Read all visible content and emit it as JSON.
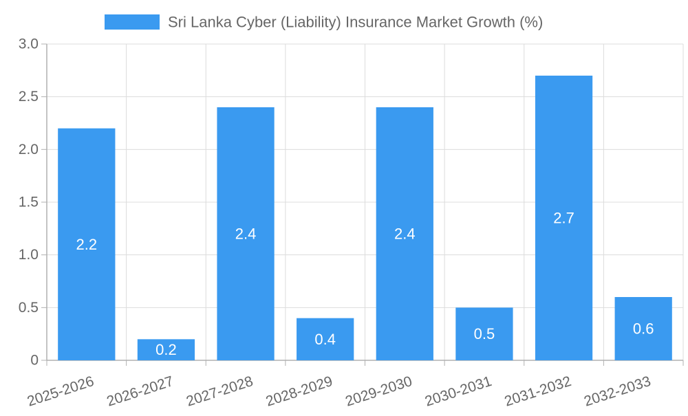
{
  "chart_data": {
    "type": "bar",
    "categories": [
      "2025-2026",
      "2026-2027",
      "2027-2028",
      "2028-2029",
      "2029-2030",
      "2030-2031",
      "2031-2032",
      "2032-2033"
    ],
    "series": [
      {
        "name": "Sri Lanka Cyber (Liability) Insurance Market Growth (%)",
        "values": [
          2.2,
          0.2,
          2.4,
          0.4,
          2.4,
          0.5,
          2.7,
          0.6
        ],
        "color": "#3a9af0"
      }
    ],
    "y_ticks": [
      "0",
      "0.5",
      "1.0",
      "1.5",
      "2.0",
      "2.5",
      "3.0"
    ],
    "ylim": [
      0,
      3.0
    ],
    "grid": true,
    "legend_position": "top-center",
    "data_labels": true,
    "colors": {
      "bar": "#3a9af0",
      "grid": "#dcdcdc",
      "axis": "#b0b0b0",
      "text": "#666666",
      "data_label": "#ffffff"
    }
  }
}
